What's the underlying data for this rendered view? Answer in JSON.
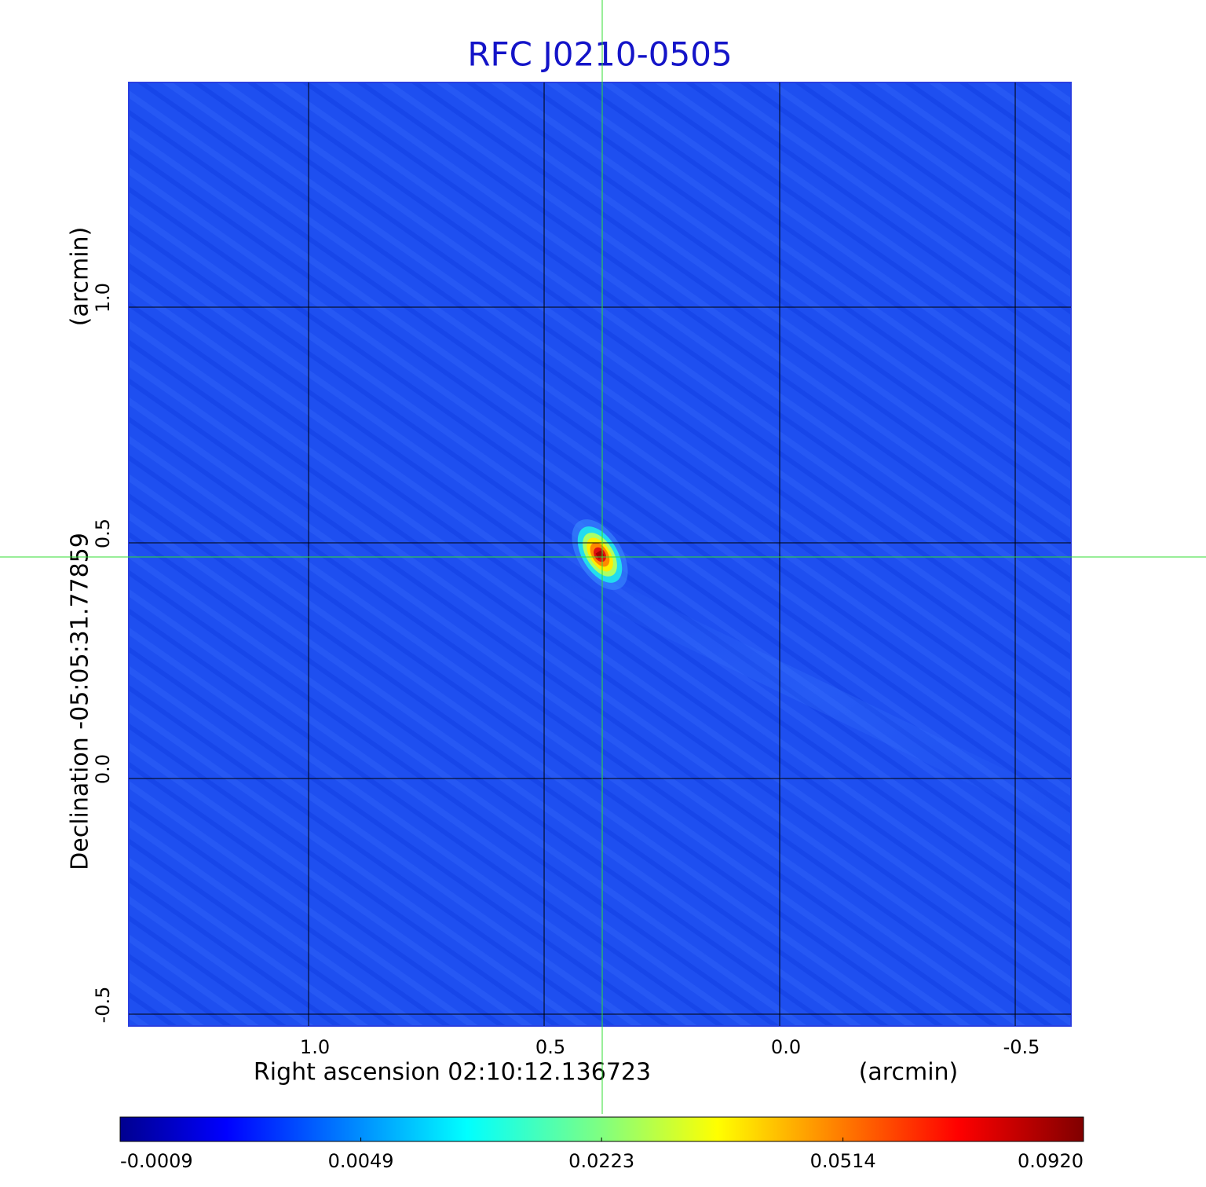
{
  "chart_data": {
    "type": "image",
    "title": "RFC J0210-0505",
    "x_label": "Right ascension  02:10:12.136723",
    "x_unit": "(arcmin)",
    "y_label": "Declination  -05:05:31.77859",
    "y_unit": "(arcmin)",
    "xlim": [
      1.3817,
      -0.6183
    ],
    "ylim": [
      -0.525,
      1.4767
    ],
    "xticks": [
      {
        "value": 1,
        "label": "1.0"
      },
      0.5,
      {
        "value": 0,
        "label": "0.0"
      },
      -0.5
    ],
    "yticks": [
      -0.5,
      {
        "value": 0,
        "label": "0.0"
      },
      0.5,
      {
        "value": 1,
        "label": "1.0"
      }
    ],
    "grid": true,
    "grid_color": "#000000",
    "colormap": "jet",
    "color_scale": "sqrt",
    "clim": [
      -0.0009,
      0.092
    ],
    "colorbar_ticks": [
      -0.0009,
      0.0049,
      0.0223,
      0.0514,
      {
        "value": 0.092,
        "label": "0.0920"
      }
    ]
  }
}
